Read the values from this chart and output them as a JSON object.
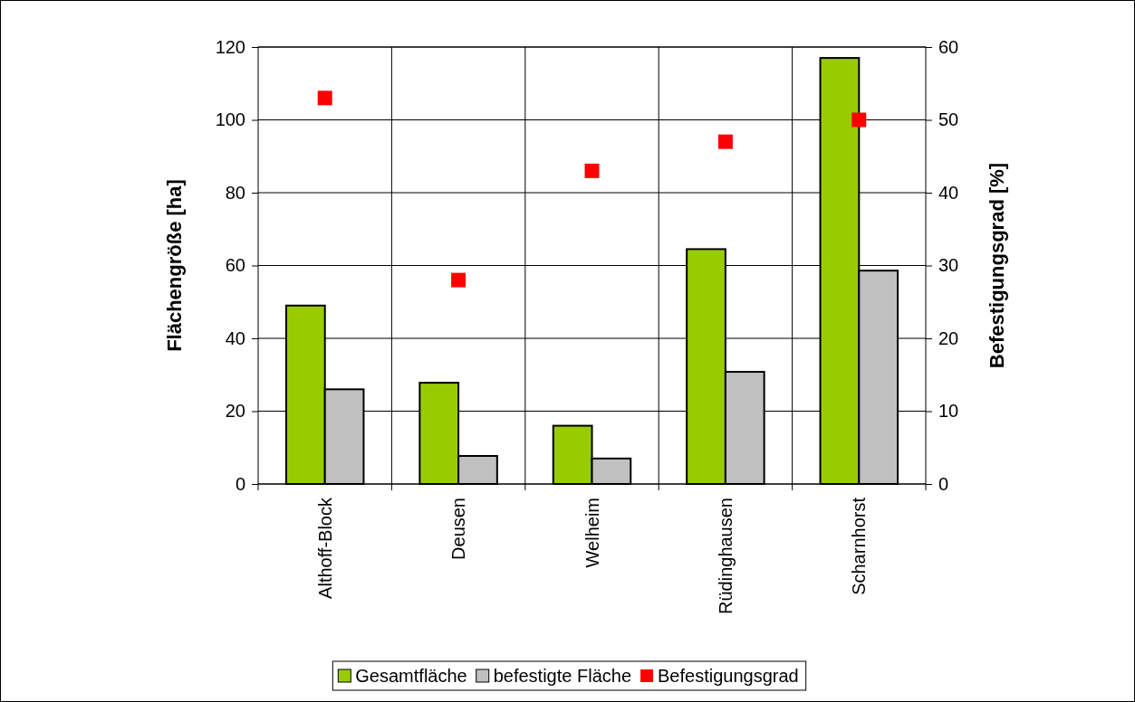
{
  "chart_data": {
    "type": "bar",
    "categories": [
      "Althoff-Block",
      "Deusen",
      "Welheim",
      "Rüdinghausen",
      "Scharnhorst"
    ],
    "ylabel": "Flächengröße [ha]",
    "y2label": "Befestigungsgrad [%]",
    "series": [
      {
        "name": "Gesamtfläche",
        "color": "#99cc00",
        "values": [
          49,
          27.8,
          16,
          64.5,
          117
        ]
      },
      {
        "name": "befestigte Fläche",
        "color": "#c0c0c0",
        "values": [
          26,
          7.7,
          7,
          30.8,
          58.6
        ]
      },
      {
        "name": "Befestigungsgrad",
        "type": "scatter",
        "axis": "y2",
        "marker": "square",
        "color": "#ff0000",
        "values": [
          53,
          28,
          43,
          47,
          50
        ]
      }
    ],
    "ylim": [
      0,
      120
    ],
    "yticks": [
      0,
      20,
      40,
      60,
      80,
      100,
      120
    ],
    "y2lim": [
      0,
      60
    ],
    "y2ticks": [
      0,
      10,
      20,
      30,
      40,
      50,
      60
    ],
    "grid": true,
    "legend": "bottom"
  }
}
